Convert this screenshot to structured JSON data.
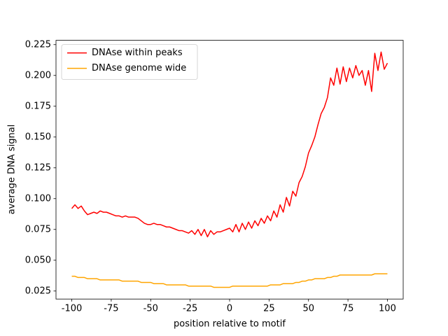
{
  "chart_data": {
    "type": "line",
    "xlabel": "position relative to motif",
    "ylabel": "average DNA signal",
    "x": [
      -100,
      -98,
      -96,
      -94,
      -92,
      -90,
      -88,
      -86,
      -84,
      -82,
      -80,
      -78,
      -76,
      -74,
      -72,
      -70,
      -68,
      -66,
      -64,
      -62,
      -60,
      -58,
      -56,
      -54,
      -52,
      -50,
      -48,
      -46,
      -44,
      -42,
      -40,
      -38,
      -36,
      -34,
      -32,
      -30,
      -28,
      -26,
      -24,
      -22,
      -20,
      -18,
      -16,
      -14,
      -12,
      -10,
      -8,
      -6,
      -4,
      -2,
      0,
      2,
      4,
      6,
      8,
      10,
      12,
      14,
      16,
      18,
      20,
      22,
      24,
      26,
      28,
      30,
      32,
      34,
      36,
      38,
      40,
      42,
      44,
      46,
      48,
      50,
      52,
      54,
      56,
      58,
      60,
      62,
      64,
      66,
      68,
      70,
      72,
      74,
      76,
      78,
      80,
      82,
      84,
      86,
      88,
      90,
      92,
      94,
      96,
      98,
      100
    ],
    "series": [
      {
        "name": "DNAse within peaks",
        "color": "#ff0000",
        "values": [
          0.092,
          0.095,
          0.092,
          0.094,
          0.09,
          0.087,
          0.088,
          0.089,
          0.088,
          0.09,
          0.089,
          0.089,
          0.088,
          0.087,
          0.086,
          0.086,
          0.085,
          0.086,
          0.085,
          0.085,
          0.085,
          0.084,
          0.082,
          0.08,
          0.079,
          0.079,
          0.08,
          0.079,
          0.079,
          0.078,
          0.077,
          0.077,
          0.076,
          0.075,
          0.074,
          0.074,
          0.073,
          0.072,
          0.074,
          0.071,
          0.075,
          0.07,
          0.075,
          0.069,
          0.074,
          0.071,
          0.073,
          0.073,
          0.074,
          0.075,
          0.076,
          0.073,
          0.079,
          0.073,
          0.08,
          0.075,
          0.081,
          0.076,
          0.082,
          0.078,
          0.084,
          0.08,
          0.086,
          0.082,
          0.09,
          0.085,
          0.095,
          0.089,
          0.101,
          0.094,
          0.106,
          0.102,
          0.113,
          0.118,
          0.126,
          0.137,
          0.143,
          0.15,
          0.16,
          0.169,
          0.174,
          0.182,
          0.198,
          0.192,
          0.206,
          0.193,
          0.207,
          0.195,
          0.206,
          0.198,
          0.208,
          0.2,
          0.204,
          0.192,
          0.204,
          0.187,
          0.218,
          0.204,
          0.219,
          0.205,
          0.21
        ]
      },
      {
        "name": "DNAse genome wide",
        "color": "#ffa500",
        "values": [
          0.037,
          0.037,
          0.036,
          0.036,
          0.036,
          0.035,
          0.035,
          0.035,
          0.035,
          0.034,
          0.034,
          0.034,
          0.034,
          0.034,
          0.034,
          0.034,
          0.033,
          0.033,
          0.033,
          0.033,
          0.033,
          0.033,
          0.032,
          0.032,
          0.032,
          0.032,
          0.031,
          0.031,
          0.031,
          0.031,
          0.03,
          0.03,
          0.03,
          0.03,
          0.03,
          0.03,
          0.03,
          0.029,
          0.029,
          0.029,
          0.029,
          0.029,
          0.029,
          0.029,
          0.029,
          0.028,
          0.028,
          0.028,
          0.028,
          0.028,
          0.028,
          0.029,
          0.029,
          0.029,
          0.029,
          0.029,
          0.029,
          0.029,
          0.029,
          0.029,
          0.029,
          0.029,
          0.029,
          0.03,
          0.03,
          0.03,
          0.03,
          0.031,
          0.031,
          0.031,
          0.031,
          0.032,
          0.032,
          0.033,
          0.033,
          0.034,
          0.034,
          0.035,
          0.035,
          0.035,
          0.035,
          0.036,
          0.036,
          0.037,
          0.037,
          0.038,
          0.038,
          0.038,
          0.038,
          0.038,
          0.038,
          0.038,
          0.038,
          0.038,
          0.038,
          0.038,
          0.039,
          0.039,
          0.039,
          0.039,
          0.039
        ]
      }
    ],
    "xlim": [
      -110,
      110
    ],
    "xticks": [
      -100,
      -75,
      -50,
      -25,
      0,
      25,
      50,
      75,
      100
    ],
    "ylim": [
      0.0185,
      0.2285
    ],
    "yticks": [
      0.025,
      {
        "value": 0.05,
        "label": "0.050"
      },
      0.075,
      {
        "value": 0.1,
        "label": "0.100"
      },
      0.125,
      {
        "value": 0.15,
        "label": "0.150"
      },
      0.175,
      {
        "value": 0.2,
        "label": "0.200"
      },
      0.225
    ],
    "legend": "upper left"
  }
}
